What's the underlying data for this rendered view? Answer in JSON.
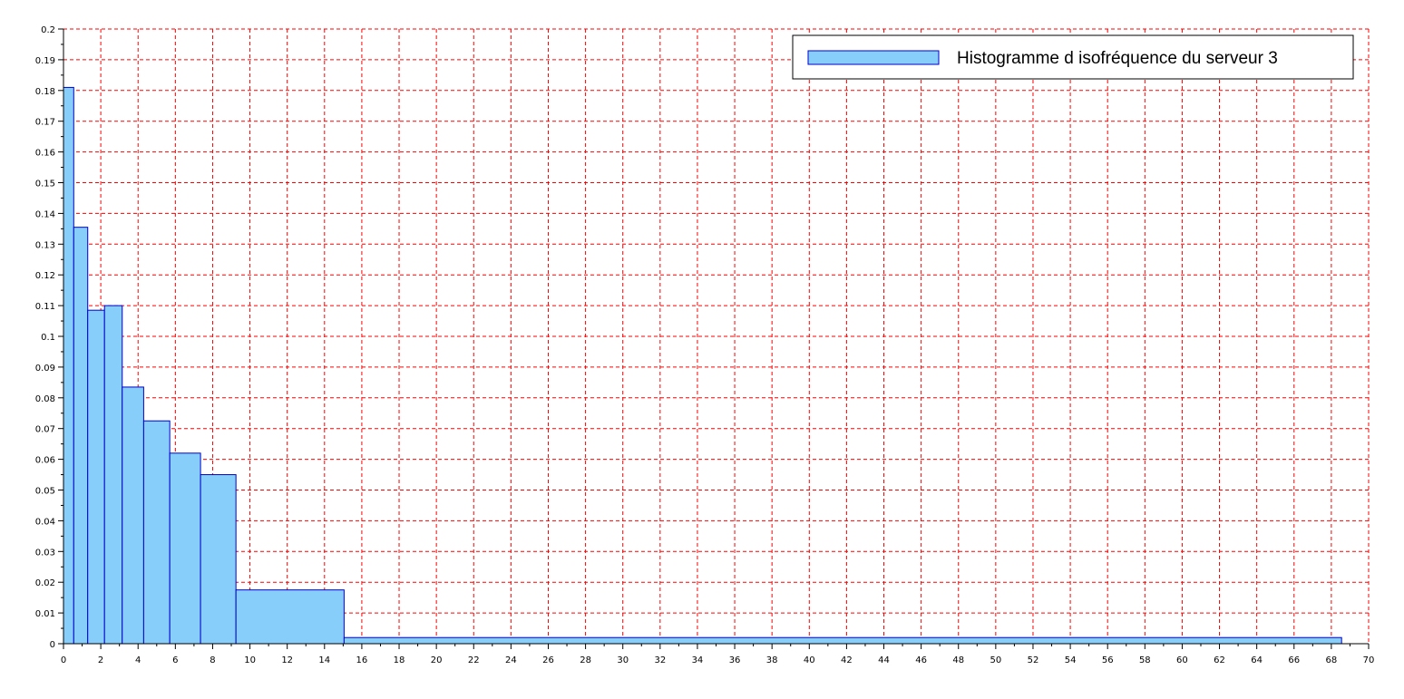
{
  "chart_data": {
    "type": "bar",
    "title": "",
    "xlabel": "",
    "ylabel": "",
    "xlim": [
      0,
      70
    ],
    "ylim": [
      0,
      0.2
    ],
    "x_ticks": [
      "0",
      "2",
      "4",
      "6",
      "8",
      "10",
      "12",
      "14",
      "16",
      "18",
      "20",
      "22",
      "24",
      "26",
      "28",
      "30",
      "32",
      "34",
      "36",
      "38",
      "40",
      "42",
      "44",
      "46",
      "48",
      "50",
      "52",
      "54",
      "56",
      "58",
      "60",
      "62",
      "64",
      "66",
      "68",
      "70"
    ],
    "y_ticks": [
      "0",
      "0.01",
      "0.02",
      "0.03",
      "0.04",
      "0.05",
      "0.06",
      "0.07",
      "0.08",
      "0.09",
      "0.1",
      "0.11",
      "0.12",
      "0.13",
      "0.14",
      "0.15",
      "0.16",
      "0.17",
      "0.18",
      "0.19",
      "0.2"
    ],
    "grid": true,
    "legend_position": "top-right",
    "series": [
      {
        "name": "Histogramme d isofréquence du serveur 3",
        "bins": [
          {
            "x0": 0.0,
            "x1": 0.55,
            "value": 0.181
          },
          {
            "x0": 0.55,
            "x1": 1.3,
            "value": 0.1355
          },
          {
            "x0": 1.3,
            "x1": 2.2,
            "value": 0.1085
          },
          {
            "x0": 2.2,
            "x1": 3.15,
            "value": 0.11
          },
          {
            "x0": 3.15,
            "x1": 4.3,
            "value": 0.0835
          },
          {
            "x0": 4.3,
            "x1": 5.7,
            "value": 0.0725
          },
          {
            "x0": 5.7,
            "x1": 7.35,
            "value": 0.062
          },
          {
            "x0": 7.35,
            "x1": 9.25,
            "value": 0.055
          },
          {
            "x0": 9.25,
            "x1": 15.05,
            "value": 0.0175
          },
          {
            "x0": 15.05,
            "x1": 68.55,
            "value": 0.002
          }
        ]
      }
    ],
    "colors": {
      "bar_fill": "#87cefa",
      "bar_stroke": "#0000cd",
      "grid": "#ff0000",
      "axis": "#000000"
    }
  }
}
